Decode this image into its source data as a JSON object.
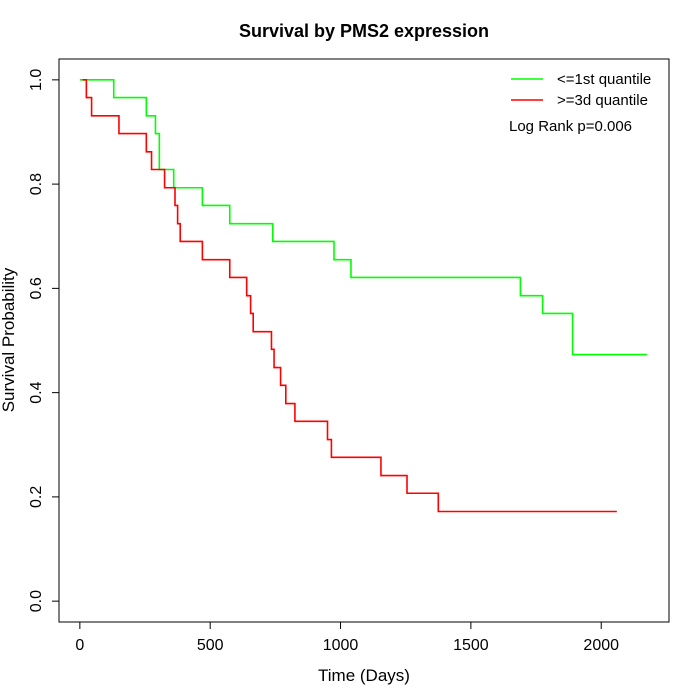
{
  "chart_data": {
    "type": "line",
    "title": "Survival by PMS2 expression",
    "xlabel": "Time (Days)",
    "ylabel": "Survival Probability",
    "xlim": [
      -80,
      2260
    ],
    "ylim": [
      -0.04,
      1.04
    ],
    "x_ticks": [
      0,
      500,
      1000,
      1500,
      2000
    ],
    "y_ticks": [
      0.0,
      0.2,
      0.4,
      0.6,
      0.8,
      1.0
    ],
    "x_tick_labels": [
      "0",
      "500",
      "1000",
      "1500",
      "2000"
    ],
    "y_tick_labels": [
      "0.0",
      "0.2",
      "0.4",
      "0.6",
      "0.8",
      "1.0"
    ],
    "grid": false,
    "legend_position": "top-right",
    "annotation": "Log Rank p=0.006",
    "series": [
      {
        "name": "<=1st quantile",
        "color": "#00ff00",
        "step_times": [
          0,
          130,
          255,
          290,
          305,
          320,
          360,
          470,
          575,
          740,
          975,
          1040,
          1690,
          1775,
          1890,
          2175
        ],
        "survival": [
          1.0,
          0.966,
          0.931,
          0.897,
          0.828,
          0.828,
          0.793,
          0.759,
          0.724,
          0.69,
          0.655,
          0.621,
          0.586,
          0.552,
          0.473,
          0.473
        ]
      },
      {
        "name": ">=3d quantile",
        "color": "#ff0000",
        "step_times": [
          10,
          25,
          45,
          150,
          255,
          275,
          325,
          365,
          375,
          385,
          395,
          470,
          575,
          640,
          655,
          665,
          735,
          745,
          770,
          790,
          825,
          950,
          965,
          1155,
          1255,
          1375,
          2060
        ],
        "survival": [
          1.0,
          0.966,
          0.931,
          0.897,
          0.862,
          0.828,
          0.793,
          0.759,
          0.724,
          0.69,
          0.69,
          0.655,
          0.621,
          0.586,
          0.552,
          0.517,
          0.483,
          0.448,
          0.414,
          0.379,
          0.345,
          0.31,
          0.276,
          0.241,
          0.207,
          0.172,
          0.172
        ]
      }
    ]
  }
}
